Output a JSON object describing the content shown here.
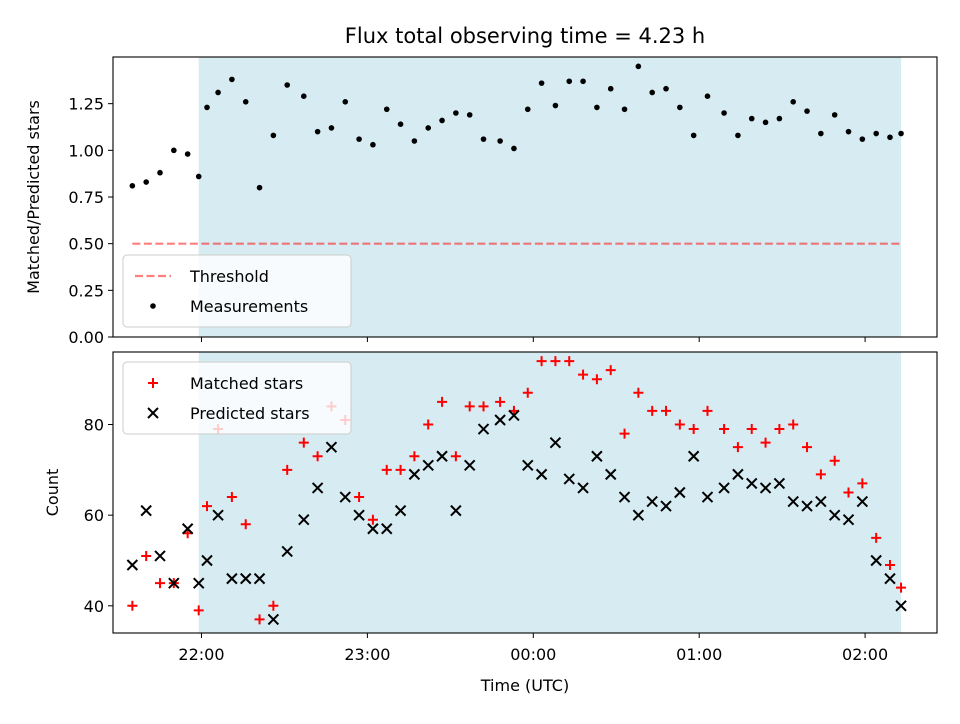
{
  "title": "Flux total observing time = 4.23 h",
  "colors": {
    "shade": "#add8e6",
    "threshold": "#ff0000",
    "matched": "#ff0000",
    "predicted": "#000000",
    "measurement": "#000000"
  },
  "chart_data": [
    {
      "type": "scatter",
      "ylabel": "Matched/Predicted stars",
      "ylim": [
        0,
        1.5
      ],
      "yticks": [
        0,
        0.25,
        0.5,
        0.75,
        1.0,
        1.25
      ],
      "ytick_labels": [
        "0.00",
        "0.25",
        "0.50",
        "0.75",
        "1.00",
        "1.25"
      ],
      "xlim": [
        "21:28",
        "02:26"
      ],
      "xticks": [
        "22:00",
        "23:00",
        "00:00",
        "01:00",
        "02:00"
      ],
      "show_xtick_labels": false,
      "shaded_span": [
        "21:59",
        "02:13"
      ],
      "legend_position": "lower left",
      "threshold": {
        "name": "Threshold",
        "y": 0.5,
        "x": [
          "21:35",
          "02:13"
        ],
        "style": "dashed"
      },
      "series": [
        {
          "name": "Measurements",
          "marker": "dot",
          "x": [
            "21:35",
            "21:40",
            "21:45",
            "21:50",
            "21:55",
            "21:59",
            "22:02",
            "22:06",
            "22:11",
            "22:16",
            "22:21",
            "22:26",
            "22:31",
            "22:37",
            "22:42",
            "22:47",
            "22:52",
            "22:57",
            "23:02",
            "23:07",
            "23:12",
            "23:17",
            "23:22",
            "23:27",
            "23:32",
            "23:37",
            "23:42",
            "23:48",
            "23:53",
            "23:58",
            "00:03",
            "00:08",
            "00:13",
            "00:18",
            "00:23",
            "00:28",
            "00:33",
            "00:38",
            "00:43",
            "00:48",
            "00:53",
            "00:58",
            "01:03",
            "01:09",
            "01:14",
            "01:19",
            "01:24",
            "01:29",
            "01:34",
            "01:39",
            "01:44",
            "01:49",
            "01:54",
            "01:59",
            "02:04",
            "02:09",
            "02:13"
          ],
          "y": [
            0.81,
            0.83,
            0.88,
            1.0,
            0.98,
            0.86,
            1.23,
            1.31,
            1.38,
            1.26,
            0.8,
            1.08,
            1.35,
            1.29,
            1.1,
            1.12,
            1.26,
            1.06,
            1.03,
            1.22,
            1.14,
            1.05,
            1.12,
            1.16,
            1.2,
            1.19,
            1.06,
            1.05,
            1.01,
            1.22,
            1.36,
            1.24,
            1.37,
            1.37,
            1.23,
            1.33,
            1.22,
            1.45,
            1.31,
            1.33,
            1.23,
            1.08,
            1.29,
            1.2,
            1.08,
            1.17,
            1.15,
            1.17,
            1.26,
            1.21,
            1.09,
            1.19,
            1.1,
            1.06,
            1.09,
            1.07,
            1.09
          ]
        }
      ]
    },
    {
      "type": "scatter",
      "xlabel": "Time (UTC)",
      "ylabel": "Count",
      "ylim": [
        34,
        96
      ],
      "yticks": [
        40,
        60,
        80
      ],
      "ytick_labels": [
        "40",
        "60",
        "80"
      ],
      "xlim": [
        "21:28",
        "02:26"
      ],
      "xticks": [
        "22:00",
        "23:00",
        "00:00",
        "01:00",
        "02:00"
      ],
      "xtick_labels": [
        "22:00",
        "23:00",
        "00:00",
        "01:00",
        "02:00"
      ],
      "show_xtick_labels": true,
      "shaded_span": [
        "21:59",
        "02:13"
      ],
      "legend_position": "upper left",
      "series": [
        {
          "name": "Matched stars",
          "marker": "plus",
          "x": [
            "21:35",
            "21:40",
            "21:45",
            "21:50",
            "21:55",
            "21:59",
            "22:02",
            "22:06",
            "22:11",
            "22:16",
            "22:21",
            "22:26",
            "22:31",
            "22:37",
            "22:42",
            "22:47",
            "22:52",
            "22:57",
            "23:02",
            "23:07",
            "23:12",
            "23:17",
            "23:22",
            "23:27",
            "23:32",
            "23:37",
            "23:42",
            "23:48",
            "23:53",
            "23:58",
            "00:03",
            "00:08",
            "00:13",
            "00:18",
            "00:23",
            "00:28",
            "00:33",
            "00:38",
            "00:43",
            "00:48",
            "00:53",
            "00:58",
            "01:03",
            "01:09",
            "01:14",
            "01:19",
            "01:24",
            "01:29",
            "01:34",
            "01:39",
            "01:44",
            "01:49",
            "01:54",
            "01:59",
            "02:04",
            "02:09",
            "02:13"
          ],
          "y": [
            40,
            51,
            45,
            45,
            56,
            39,
            62,
            79,
            64,
            58,
            37,
            40,
            70,
            76,
            73,
            84,
            81,
            64,
            59,
            70,
            70,
            73,
            80,
            85,
            73,
            84,
            84,
            85,
            83,
            87,
            94,
            94,
            94,
            91,
            90,
            92,
            78,
            87,
            83,
            83,
            80,
            79,
            83,
            79,
            75,
            79,
            76,
            79,
            80,
            75,
            69,
            72,
            65,
            67,
            55,
            49,
            44
          ]
        },
        {
          "name": "Predicted stars",
          "marker": "x",
          "x": [
            "21:35",
            "21:40",
            "21:45",
            "21:50",
            "21:55",
            "21:59",
            "22:02",
            "22:06",
            "22:11",
            "22:16",
            "22:21",
            "22:26",
            "22:31",
            "22:37",
            "22:42",
            "22:47",
            "22:52",
            "22:57",
            "23:02",
            "23:07",
            "23:12",
            "23:17",
            "23:22",
            "23:27",
            "23:32",
            "23:37",
            "23:42",
            "23:48",
            "23:53",
            "23:58",
            "00:03",
            "00:08",
            "00:13",
            "00:18",
            "00:23",
            "00:28",
            "00:33",
            "00:38",
            "00:43",
            "00:48",
            "00:53",
            "00:58",
            "01:03",
            "01:09",
            "01:14",
            "01:19",
            "01:24",
            "01:29",
            "01:34",
            "01:39",
            "01:44",
            "01:49",
            "01:54",
            "01:59",
            "02:04",
            "02:09",
            "02:13"
          ],
          "y": [
            49,
            61,
            51,
            45,
            57,
            45,
            50,
            60,
            46,
            46,
            46,
            37,
            52,
            59,
            66,
            75,
            64,
            60,
            57,
            57,
            61,
            69,
            71,
            73,
            61,
            71,
            79,
            81,
            82,
            71,
            69,
            76,
            68,
            66,
            73,
            69,
            64,
            60,
            63,
            62,
            65,
            73,
            64,
            66,
            69,
            67,
            66,
            67,
            63,
            62,
            63,
            60,
            59,
            63,
            50,
            46,
            40
          ]
        }
      ]
    }
  ]
}
